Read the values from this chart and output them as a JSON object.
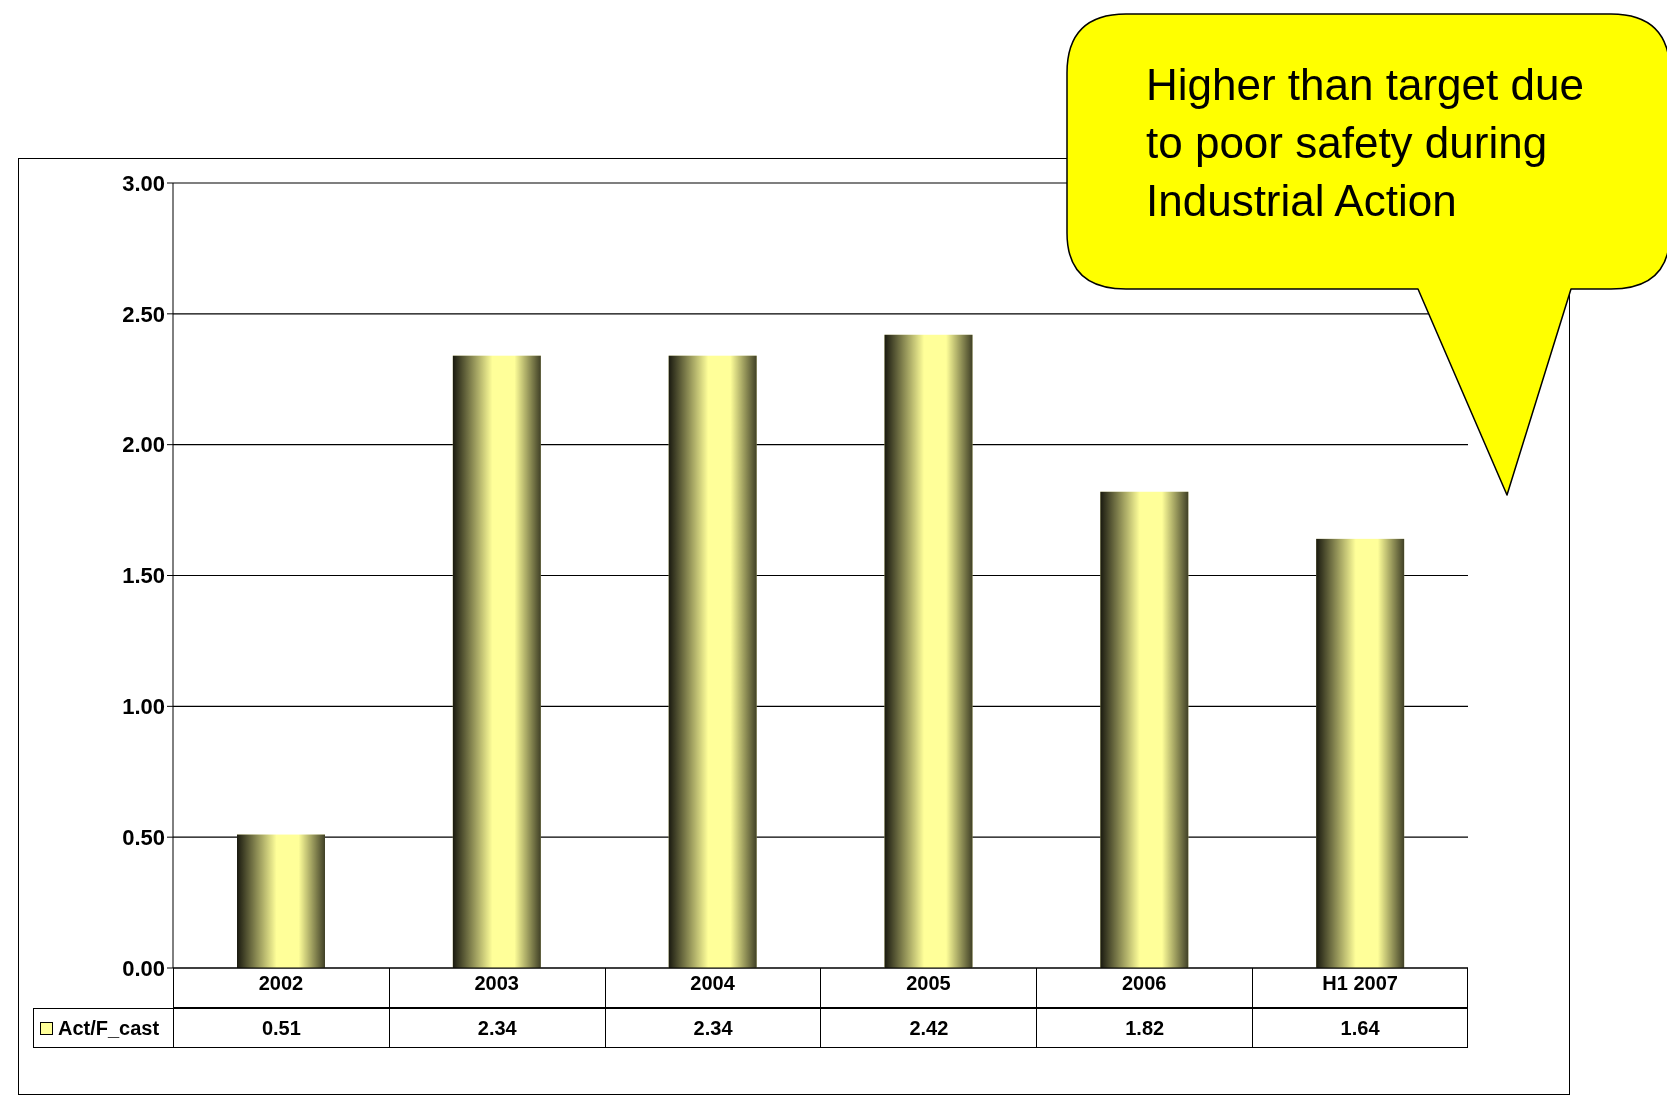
{
  "chart_data": {
    "type": "bar",
    "categories": [
      "2002",
      "2003",
      "2004",
      "2005",
      "2006",
      "H1 2007"
    ],
    "series": [
      {
        "name": "Act/F_cast",
        "color": "#ffff99",
        "values": [
          0.51,
          2.34,
          2.34,
          2.42,
          1.82,
          1.64
        ]
      }
    ],
    "ylim": [
      0,
      3
    ],
    "yticks": [
      {
        "value": 0,
        "label": "0.00"
      },
      {
        "value": 0.5,
        "label": "0.50"
      },
      {
        "value": 1,
        "label": "1.00"
      },
      {
        "value": 1.5,
        "label": "1.50"
      },
      {
        "value": 2,
        "label": "2.00"
      },
      {
        "value": 2.5,
        "label": "2.50"
      },
      {
        "value": 3,
        "label": "3.00"
      }
    ],
    "grid": "y",
    "legend": "bottom",
    "data_labels": true,
    "annotations": [
      "Higher than target due to poor safety during Industrial Action"
    ]
  }
}
